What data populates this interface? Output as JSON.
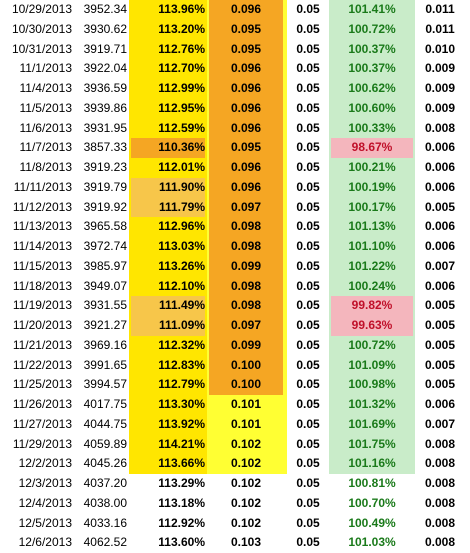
{
  "rows": [
    {
      "date": "10/29/2013",
      "price": "3952.34",
      "pct": "113.96%",
      "v1": "0.096",
      "v2": "0.05",
      "ratio": "101.41%",
      "last": "0.011",
      "c3hl": "",
      "c4hl": true,
      "neg": false
    },
    {
      "date": "10/30/2013",
      "price": "3930.62",
      "pct": "113.20%",
      "v1": "0.095",
      "v2": "0.05",
      "ratio": "100.72%",
      "last": "0.011",
      "c3hl": "",
      "c4hl": true,
      "neg": false
    },
    {
      "date": "10/31/2013",
      "price": "3919.71",
      "pct": "112.76%",
      "v1": "0.095",
      "v2": "0.05",
      "ratio": "100.37%",
      "last": "0.010",
      "c3hl": "",
      "c4hl": true,
      "neg": false
    },
    {
      "date": "11/1/2013",
      "price": "3922.04",
      "pct": "112.70%",
      "v1": "0.096",
      "v2": "0.05",
      "ratio": "100.37%",
      "last": "0.009",
      "c3hl": "",
      "c4hl": true,
      "neg": false
    },
    {
      "date": "11/4/2013",
      "price": "3936.59",
      "pct": "112.99%",
      "v1": "0.096",
      "v2": "0.05",
      "ratio": "100.62%",
      "last": "0.009",
      "c3hl": "",
      "c4hl": true,
      "neg": false
    },
    {
      "date": "11/5/2013",
      "price": "3939.86",
      "pct": "112.95%",
      "v1": "0.096",
      "v2": "0.05",
      "ratio": "100.60%",
      "last": "0.009",
      "c3hl": "",
      "c4hl": true,
      "neg": false
    },
    {
      "date": "11/6/2013",
      "price": "3931.95",
      "pct": "112.59%",
      "v1": "0.096",
      "v2": "0.05",
      "ratio": "100.33%",
      "last": "0.008",
      "c3hl": "",
      "c4hl": true,
      "neg": false
    },
    {
      "date": "11/7/2013",
      "price": "3857.33",
      "pct": "110.36%",
      "v1": "0.095",
      "v2": "0.05",
      "ratio": "98.67%",
      "last": "0.006",
      "c3hl": "hl",
      "c4hl": true,
      "neg": true
    },
    {
      "date": "11/8/2013",
      "price": "3919.23",
      "pct": "112.01%",
      "v1": "0.096",
      "v2": "0.05",
      "ratio": "100.21%",
      "last": "0.006",
      "c3hl": "",
      "c4hl": true,
      "neg": false
    },
    {
      "date": "11/11/2013",
      "price": "3919.79",
      "pct": "111.90%",
      "v1": "0.096",
      "v2": "0.05",
      "ratio": "100.19%",
      "last": "0.006",
      "c3hl": "hl2",
      "c4hl": true,
      "neg": false
    },
    {
      "date": "11/12/2013",
      "price": "3919.92",
      "pct": "111.79%",
      "v1": "0.097",
      "v2": "0.05",
      "ratio": "100.17%",
      "last": "0.005",
      "c3hl": "hl2",
      "c4hl": true,
      "neg": false
    },
    {
      "date": "11/13/2013",
      "price": "3965.58",
      "pct": "112.96%",
      "v1": "0.098",
      "v2": "0.05",
      "ratio": "101.13%",
      "last": "0.006",
      "c3hl": "",
      "c4hl": true,
      "neg": false
    },
    {
      "date": "11/14/2013",
      "price": "3972.74",
      "pct": "113.03%",
      "v1": "0.098",
      "v2": "0.05",
      "ratio": "101.10%",
      "last": "0.006",
      "c3hl": "",
      "c4hl": true,
      "neg": false
    },
    {
      "date": "11/15/2013",
      "price": "3985.97",
      "pct": "113.26%",
      "v1": "0.099",
      "v2": "0.05",
      "ratio": "101.22%",
      "last": "0.007",
      "c3hl": "",
      "c4hl": true,
      "neg": false
    },
    {
      "date": "11/18/2013",
      "price": "3949.07",
      "pct": "112.10%",
      "v1": "0.098",
      "v2": "0.05",
      "ratio": "100.24%",
      "last": "0.006",
      "c3hl": "",
      "c4hl": true,
      "neg": false
    },
    {
      "date": "11/19/2013",
      "price": "3931.55",
      "pct": "111.49%",
      "v1": "0.098",
      "v2": "0.05",
      "ratio": "99.82%",
      "last": "0.005",
      "c3hl": "hl2",
      "c4hl": true,
      "neg": true
    },
    {
      "date": "11/20/2013",
      "price": "3921.27",
      "pct": "111.09%",
      "v1": "0.097",
      "v2": "0.05",
      "ratio": "99.63%",
      "last": "0.005",
      "c3hl": "hl2",
      "c4hl": true,
      "neg": true
    },
    {
      "date": "11/21/2013",
      "price": "3969.16",
      "pct": "112.32%",
      "v1": "0.099",
      "v2": "0.05",
      "ratio": "100.72%",
      "last": "0.005",
      "c3hl": "",
      "c4hl": true,
      "neg": false
    },
    {
      "date": "11/22/2013",
      "price": "3991.65",
      "pct": "112.83%",
      "v1": "0.100",
      "v2": "0.05",
      "ratio": "101.09%",
      "last": "0.005",
      "c3hl": "",
      "c4hl": true,
      "neg": false
    },
    {
      "date": "11/25/2013",
      "price": "3994.57",
      "pct": "112.79%",
      "v1": "0.100",
      "v2": "0.05",
      "ratio": "100.98%",
      "last": "0.005",
      "c3hl": "",
      "c4hl": true,
      "neg": false
    },
    {
      "date": "11/26/2013",
      "price": "4017.75",
      "pct": "113.30%",
      "v1": "0.101",
      "v2": "0.05",
      "ratio": "101.32%",
      "last": "0.006",
      "c3hl": "",
      "c4hl": false,
      "neg": false
    },
    {
      "date": "11/27/2013",
      "price": "4044.75",
      "pct": "113.92%",
      "v1": "0.101",
      "v2": "0.05",
      "ratio": "101.69%",
      "last": "0.007",
      "c3hl": "",
      "c4hl": false,
      "neg": false
    },
    {
      "date": "11/29/2013",
      "price": "4059.89",
      "pct": "114.21%",
      "v1": "0.102",
      "v2": "0.05",
      "ratio": "101.75%",
      "last": "0.008",
      "c3hl": "",
      "c4hl": false,
      "neg": false
    },
    {
      "date": "12/2/2013",
      "price": "4045.26",
      "pct": "113.66%",
      "v1": "0.102",
      "v2": "0.05",
      "ratio": "101.16%",
      "last": "0.008",
      "c3hl": "",
      "c4hl": false,
      "neg": false
    },
    {
      "date": "12/3/2013",
      "price": "4037.20",
      "pct": "113.29%",
      "v1": "0.102",
      "v2": "0.05",
      "ratio": "100.81%",
      "last": "0.008",
      "c3hl": "",
      "c4hl": false,
      "neg": false
    },
    {
      "date": "12/4/2013",
      "price": "4038.00",
      "pct": "113.18%",
      "v1": "0.102",
      "v2": "0.05",
      "ratio": "100.70%",
      "last": "0.008",
      "c3hl": "",
      "c4hl": false,
      "neg": false
    },
    {
      "date": "12/5/2013",
      "price": "4033.16",
      "pct": "112.92%",
      "v1": "0.102",
      "v2": "0.05",
      "ratio": "100.49%",
      "last": "0.008",
      "c3hl": "",
      "c4hl": false,
      "neg": false
    },
    {
      "date": "12/6/2013",
      "price": "4062.52",
      "pct": "113.60%",
      "v1": "0.103",
      "v2": "0.05",
      "ratio": "101.03%",
      "last": "0.008",
      "c3hl": "",
      "c4hl": false,
      "neg": false
    }
  ],
  "colors": {
    "col3_bg": "#ffe600",
    "col4_bg": "#ffff33",
    "col4_highlight": "#f5a623",
    "col6_bg": "#c9ecc9",
    "positive_text": "#1a7a1a",
    "negative_bg": "#f4b6bd",
    "negative_text": "#c0102a"
  }
}
